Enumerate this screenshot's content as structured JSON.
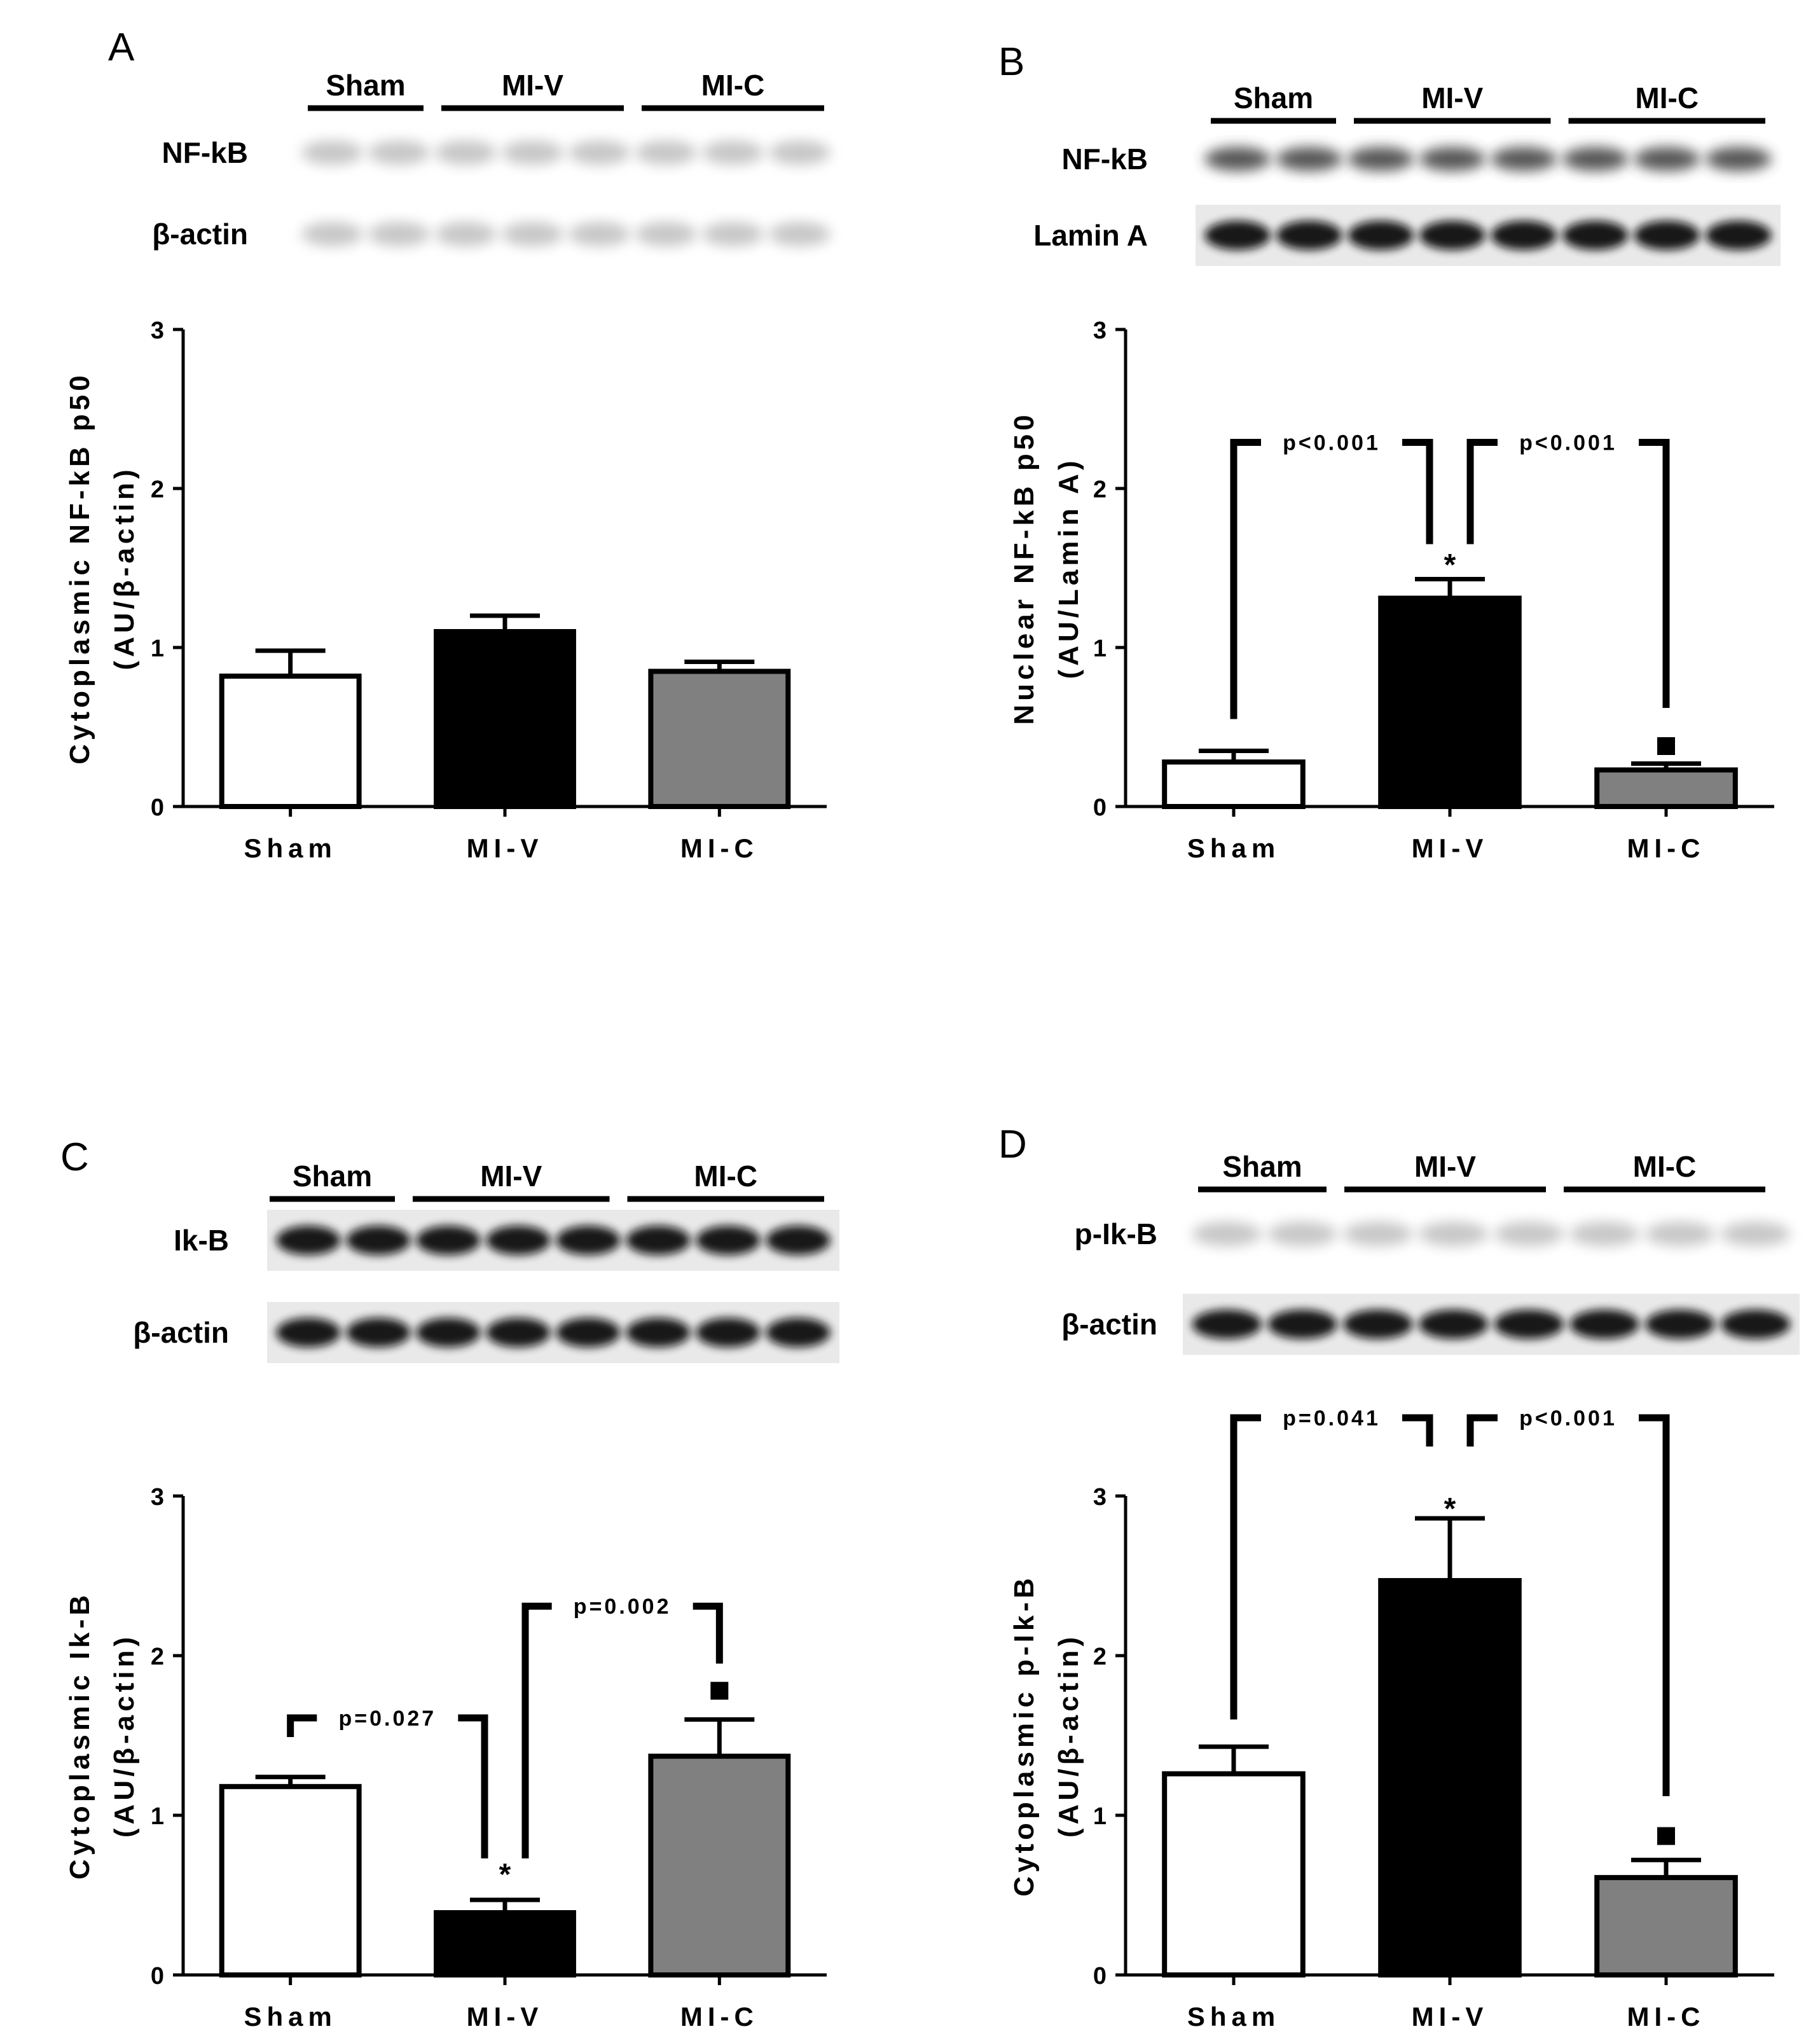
{
  "figure": {
    "title": ""
  },
  "chart_data": [
    {
      "panel": "A",
      "type": "bar",
      "blot": {
        "group_labels": [
          "Sham",
          "MI-V",
          "MI-C"
        ],
        "lane_groups": [
          2,
          3,
          3
        ],
        "band_labels": [
          "NF-kB",
          "β-actin"
        ],
        "band_styles": [
          "faint",
          "faint"
        ]
      },
      "ylabel": [
        "Cytoplasmic NF-kB p50",
        "(AU/β-actin)"
      ],
      "yticks": [
        "0",
        "1",
        "2",
        "3"
      ],
      "ylim": [
        0,
        3
      ],
      "categories": [
        "Sham",
        "MI-V",
        "MI-C"
      ],
      "values": [
        0.82,
        1.1,
        0.85
      ],
      "errors": [
        0.16,
        0.1,
        0.06
      ],
      "bar_colors": [
        "#ffffff",
        "#000000",
        "#808080"
      ],
      "comparisons": [],
      "star_labels": [],
      "square_markers": []
    },
    {
      "panel": "B",
      "type": "bar",
      "blot": {
        "group_labels": [
          "Sham",
          "MI-V",
          "MI-C"
        ],
        "lane_groups": [
          2,
          3,
          3
        ],
        "band_labels": [
          "NF-kB",
          "Lamin A"
        ],
        "band_styles": [
          "medium",
          "dark"
        ]
      },
      "ylabel": [
        "Nuclear NF-kB p50",
        "(AU/Lamin A)"
      ],
      "yticks": [
        "0",
        "1",
        "2",
        "3"
      ],
      "ylim": [
        0,
        3
      ],
      "categories": [
        "Sham",
        "MI-V",
        "MI-C"
      ],
      "values": [
        0.28,
        1.31,
        0.23
      ],
      "errors": [
        0.07,
        0.12,
        0.04
      ],
      "bar_colors": [
        "#ffffff",
        "#000000",
        "#808080"
      ],
      "comparisons": [
        {
          "from": 0,
          "to": 1,
          "label": "p<0.001",
          "y": 2.29,
          "y_from": 0.55,
          "y_to": 1.65
        },
        {
          "from": 1,
          "to": 2,
          "label": "p<0.001",
          "y": 2.29,
          "y_from": 1.65,
          "y_to": 0.62
        }
      ],
      "star_labels": [
        {
          "index": 1,
          "text": "*",
          "y": 1.52
        }
      ],
      "square_markers": [
        {
          "index": 2,
          "y": 0.38
        }
      ]
    },
    {
      "panel": "C",
      "type": "bar",
      "blot": {
        "group_labels": [
          "Sham",
          "MI-V",
          "MI-C"
        ],
        "lane_groups": [
          2,
          3,
          3
        ],
        "band_labels": [
          "Ik-B",
          "β-actin"
        ],
        "band_styles": [
          "dark",
          "dark"
        ]
      },
      "ylabel": [
        "Cytoplasmic Ik-B",
        "(AU/β-actin)"
      ],
      "yticks": [
        "0",
        "1",
        "2",
        "3"
      ],
      "ylim": [
        0,
        3
      ],
      "categories": [
        "Sham",
        "MI-V",
        "MI-C"
      ],
      "values": [
        1.18,
        0.39,
        1.37
      ],
      "errors": [
        0.06,
        0.08,
        0.23
      ],
      "bar_colors": [
        "#ffffff",
        "#000000",
        "#808080"
      ],
      "comparisons": [
        {
          "from": 0,
          "to": 1,
          "label": "p=0.027",
          "y": 1.61,
          "y_from": 1.49,
          "y_to": 0.73
        },
        {
          "from": 1,
          "to": 2,
          "label": "p=0.002",
          "y": 2.31,
          "y_from": 0.73,
          "y_to": 1.95
        }
      ],
      "star_labels": [
        {
          "index": 1,
          "text": "*",
          "y": 0.63
        }
      ],
      "square_markers": [
        {
          "index": 2,
          "y": 1.78
        }
      ]
    },
    {
      "panel": "D",
      "type": "bar",
      "blot": {
        "group_labels": [
          "Sham",
          "MI-V",
          "MI-C"
        ],
        "lane_groups": [
          2,
          3,
          3
        ],
        "band_labels": [
          "p-Ik-B",
          "β-actin"
        ],
        "band_styles": [
          "faint",
          "dark"
        ]
      },
      "ylabel": [
        "Cytoplasmic p-Ik-B",
        "(AU/β-actin)"
      ],
      "yticks": [
        "0",
        "1",
        "2",
        "3"
      ],
      "ylim": [
        0,
        3
      ],
      "categories": [
        "Sham",
        "MI-V",
        "MI-C"
      ],
      "values": [
        1.26,
        2.47,
        0.61
      ],
      "errors": [
        0.17,
        0.39,
        0.11
      ],
      "bar_colors": [
        "#ffffff",
        "#000000",
        "#808080"
      ],
      "comparisons": [
        {
          "from": 0,
          "to": 1,
          "label": "p=0.041",
          "y": 3.49,
          "y_from": 1.6,
          "y_to": 3.31
        },
        {
          "from": 1,
          "to": 2,
          "label": "p<0.001",
          "y": 3.49,
          "y_from": 3.31,
          "y_to": 1.12
        }
      ],
      "star_labels": [
        {
          "index": 1,
          "text": "*",
          "y": 2.92
        }
      ],
      "square_markers": [
        {
          "index": 2,
          "y": 0.87
        }
      ]
    }
  ]
}
